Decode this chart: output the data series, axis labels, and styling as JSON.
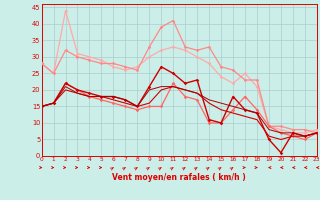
{
  "xlabel": "Vent moyen/en rafales ( km/h )",
  "bg_color": "#cceee8",
  "grid_color": "#aacccc",
  "text_color": "#dd0000",
  "xlim": [
    0,
    23
  ],
  "ylim": [
    0,
    46
  ],
  "yticks": [
    0,
    5,
    10,
    15,
    20,
    25,
    30,
    35,
    40,
    45
  ],
  "xticks": [
    0,
    1,
    2,
    3,
    4,
    5,
    6,
    7,
    8,
    9,
    10,
    11,
    12,
    13,
    14,
    15,
    16,
    17,
    18,
    19,
    20,
    21,
    22,
    23
  ],
  "lines": [
    {
      "x": [
        0,
        1,
        2,
        3,
        4,
        5,
        6,
        7,
        8,
        9,
        10,
        11,
        12,
        13,
        14,
        15,
        16,
        17,
        18,
        19,
        20,
        21,
        22,
        23
      ],
      "y": [
        28,
        25,
        44,
        31,
        30,
        29,
        27,
        26,
        27,
        30,
        32,
        33,
        32,
        30,
        28,
        24,
        22,
        25,
        21,
        9,
        8,
        7,
        7,
        8
      ],
      "color": "#ffaaaa",
      "lw": 0.9,
      "marker": "D",
      "ms": 1.8
    },
    {
      "x": [
        0,
        1,
        2,
        3,
        4,
        5,
        6,
        7,
        8,
        9,
        10,
        11,
        12,
        13,
        14,
        15,
        16,
        17,
        18,
        19,
        20,
        21,
        22,
        23
      ],
      "y": [
        28,
        25,
        32,
        30,
        29,
        28,
        28,
        27,
        26,
        33,
        39,
        41,
        33,
        32,
        33,
        27,
        26,
        23,
        23,
        9,
        9,
        8,
        8,
        7
      ],
      "color": "#ff8888",
      "lw": 0.9,
      "marker": "D",
      "ms": 1.8
    },
    {
      "x": [
        0,
        1,
        2,
        3,
        4,
        5,
        6,
        7,
        8,
        9,
        10,
        11,
        12,
        13,
        14,
        15,
        16,
        17,
        18,
        19,
        20,
        21,
        22,
        23
      ],
      "y": [
        15,
        16,
        22,
        20,
        18,
        17,
        16,
        15,
        14,
        15,
        15,
        22,
        18,
        17,
        10,
        10,
        14,
        18,
        14,
        9,
        7,
        6,
        5,
        7
      ],
      "color": "#ff6666",
      "lw": 0.9,
      "marker": "D",
      "ms": 1.8
    },
    {
      "x": [
        0,
        1,
        2,
        3,
        4,
        5,
        6,
        7,
        8,
        9,
        10,
        11,
        12,
        13,
        14,
        15,
        16,
        17,
        18,
        19,
        20,
        21,
        22,
        23
      ],
      "y": [
        15,
        16,
        22,
        20,
        19,
        18,
        18,
        17,
        15,
        21,
        27,
        25,
        22,
        23,
        11,
        10,
        18,
        14,
        13,
        5,
        1,
        7,
        6,
        7
      ],
      "color": "#cc0000",
      "lw": 1.0,
      "marker": "D",
      "ms": 1.8
    },
    {
      "x": [
        0,
        1,
        2,
        3,
        4,
        5,
        6,
        7,
        8,
        9,
        10,
        11,
        12,
        13,
        14,
        15,
        16,
        17,
        18,
        19,
        20,
        21,
        22,
        23
      ],
      "y": [
        15,
        16,
        20,
        19,
        18,
        18,
        17,
        16,
        15,
        16,
        20,
        21,
        20,
        19,
        16,
        14,
        13,
        12,
        11,
        6,
        5,
        6,
        6,
        7
      ],
      "color": "#cc0000",
      "lw": 0.8,
      "marker": null,
      "ms": 0
    },
    {
      "x": [
        0,
        1,
        2,
        3,
        4,
        5,
        6,
        7,
        8,
        9,
        10,
        11,
        12,
        13,
        14,
        15,
        16,
        17,
        18,
        19,
        20,
        21,
        22,
        23
      ],
      "y": [
        15,
        16,
        21,
        19,
        18,
        18,
        18,
        17,
        15,
        20,
        21,
        21,
        20,
        19,
        17,
        16,
        15,
        14,
        13,
        8,
        7,
        7,
        6,
        7
      ],
      "color": "#aa0000",
      "lw": 0.7,
      "marker": null,
      "ms": 0
    }
  ],
  "wind_dir": [
    0,
    0,
    0,
    0,
    0,
    0,
    45,
    45,
    45,
    45,
    45,
    45,
    45,
    45,
    45,
    45,
    45,
    0,
    0,
    180,
    180,
    180,
    180,
    180
  ]
}
